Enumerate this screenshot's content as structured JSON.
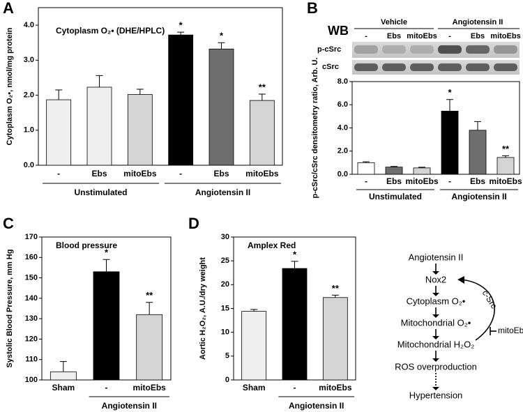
{
  "panel_letters": [
    "A",
    "B",
    "C",
    "D"
  ],
  "chart_data": [
    {
      "type": "bar",
      "title": "Cytoplasm O₂• (DHE/HPLC)",
      "ylabel": "Cytoplasm O₂•, nmol/mg protein",
      "categories": [
        "-",
        "Ebs",
        "mitoEbs",
        "-",
        "Ebs",
        "mitoEbs"
      ],
      "groups": [
        "Unstimulated",
        "Angiotensin II"
      ],
      "values": [
        1.87,
        2.23,
        2.02,
        3.72,
        3.32,
        1.85
      ],
      "errors": [
        0.28,
        0.33,
        0.15,
        0.08,
        0.18,
        0.18
      ],
      "colors": [
        "#efefef",
        "#efefef",
        "#d4d4d4",
        "#000000",
        "#6e6e6e",
        "#d4d4d4"
      ],
      "annotations": [
        null,
        null,
        null,
        "*",
        "*",
        "**"
      ],
      "ylim": [
        0,
        4.5
      ],
      "yticks": [
        {
          "value": 0,
          "label": "0.0"
        },
        {
          "value": 1,
          "label": "1.0"
        },
        {
          "value": 2,
          "label": "2.0"
        },
        {
          "value": 3,
          "label": "3.0"
        },
        {
          "value": 4,
          "label": "4.0"
        }
      ]
    },
    {
      "type": "bar",
      "ylabel": "p-cSrc/cSrc densitometry ratio, Arb. U.",
      "categories": [
        "-",
        "Ebs",
        "mitoEbs",
        "-",
        "Ebs",
        "mitoEbs"
      ],
      "groups": [
        "Unstimulated",
        "Angiotensin II"
      ],
      "values": [
        1.0,
        0.62,
        0.55,
        5.45,
        3.8,
        1.45
      ],
      "errors": [
        0.08,
        0.06,
        0.06,
        1.0,
        0.75,
        0.15
      ],
      "colors": [
        "#ffffff",
        "#6e6e6e",
        "#d4d4d4",
        "#000000",
        "#6e6e6e",
        "#d4d4d4"
      ],
      "annotations": [
        null,
        null,
        null,
        "*",
        null,
        "**"
      ],
      "ylim": [
        0,
        8
      ],
      "yticks": [
        {
          "value": 0,
          "label": "0.0"
        },
        {
          "value": 2,
          "label": "2.0"
        },
        {
          "value": 4,
          "label": "4.0"
        },
        {
          "value": 6,
          "label": "6.0"
        },
        {
          "value": 8,
          "label": "8.0"
        }
      ]
    },
    {
      "type": "bar",
      "title": "Blood pressure",
      "ylabel": "Systolic Blood Pressure, mm Hg",
      "categories": [
        "Sham",
        "-",
        "mitoEbs"
      ],
      "groups": [
        "Angiotensin II"
      ],
      "values": [
        104,
        153,
        132
      ],
      "errors": [
        5,
        6,
        6
      ],
      "colors": [
        "#efefef",
        "#000000",
        "#d4d4d4"
      ],
      "annotations": [
        null,
        "*",
        "**"
      ],
      "ylim": [
        100,
        170
      ],
      "yticks": [
        100,
        110,
        120,
        130,
        140,
        150,
        160,
        170
      ]
    },
    {
      "type": "bar",
      "title": "Amplex Red",
      "ylabel": "Aortic H₂O₂, A.U./dry weight",
      "categories": [
        "Sham",
        "-",
        "mitoEbs"
      ],
      "groups": [
        "Angiotensin II"
      ],
      "values": [
        14.4,
        23.4,
        17.3
      ],
      "errors": [
        0.4,
        1.5,
        0.5
      ],
      "colors": [
        "#efefef",
        "#000000",
        "#d4d4d4"
      ],
      "annotations": [
        null,
        "*",
        "**"
      ],
      "ylim": [
        0,
        30
      ],
      "yticks": [
        0,
        5,
        10,
        15,
        20,
        25,
        30
      ]
    }
  ],
  "western_blot": {
    "label": "WB",
    "groups": [
      "Vehicle",
      "Angiotensin II"
    ],
    "lanes": [
      "-",
      "Ebs",
      "mitoEbs",
      "-",
      "Ebs",
      "mitoEbs"
    ],
    "rows": [
      "p-cSrc",
      "cSrc"
    ]
  },
  "pathway": {
    "nodes": [
      "Angiotensin II",
      "Nox2",
      "Cytoplasm O₂•",
      "Mitochondrial O₂•",
      "Mitochondrial H₂O₂",
      "ROS overproduction",
      "Hypertension"
    ],
    "feedback": "c-Src",
    "inhibitor": "mitoEbs"
  }
}
